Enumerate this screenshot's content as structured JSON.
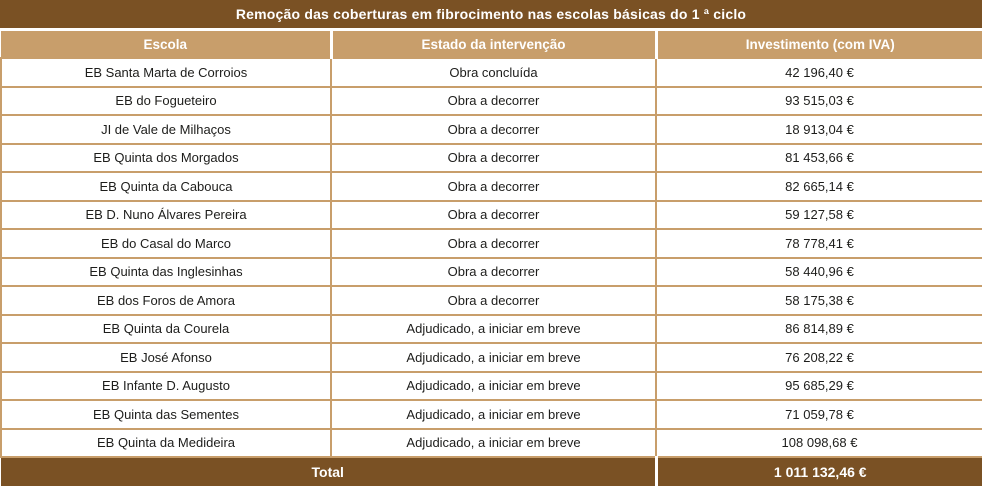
{
  "title": "Remoção das coberturas em fibrocimento nas escolas básicas do 1 ª ciclo",
  "table": {
    "columns": [
      "Escola",
      "Estado da intervenção",
      "Investimento (com IVA)"
    ],
    "rows": [
      {
        "school": "EB Santa Marta de Corroios",
        "status": "Obra concluída",
        "investment": "42 196,40 €"
      },
      {
        "school": "EB do Fogueteiro",
        "status": "Obra a decorrer",
        "investment": "93 515,03 €"
      },
      {
        "school": "JI de Vale de Milhaços",
        "status": "Obra a decorrer",
        "investment": "18 913,04 €"
      },
      {
        "school": "EB Quinta dos Morgados",
        "status": "Obra a decorrer",
        "investment": "81 453,66 €"
      },
      {
        "school": "EB Quinta da Cabouca",
        "status": "Obra a decorrer",
        "investment": "82 665,14 €"
      },
      {
        "school": "EB D. Nuno Álvares Pereira",
        "status": "Obra a decorrer",
        "investment": "59 127,58 €"
      },
      {
        "school": "EB do Casal do Marco",
        "status": "Obra a decorrer",
        "investment": "78 778,41 €"
      },
      {
        "school": "EB Quinta das Inglesinhas",
        "status": "Obra a decorrer",
        "investment": "58 440,96 €"
      },
      {
        "school": "EB dos Foros de Amora",
        "status": "Obra a decorrer",
        "investment": "58 175,38 €"
      },
      {
        "school": "EB Quinta da Courela",
        "status": "Adjudicado, a iniciar em breve",
        "investment": "86 814,89 €"
      },
      {
        "school": "EB José Afonso",
        "status": "Adjudicado, a iniciar em breve",
        "investment": "76 208,22 €"
      },
      {
        "school": "EB Infante D. Augusto",
        "status": "Adjudicado, a iniciar em breve",
        "investment": "95 685,29 €"
      },
      {
        "school": "EB Quinta das Sementes",
        "status": "Adjudicado, a iniciar em breve",
        "investment": "71 059,78 €"
      },
      {
        "school": "EB Quinta da Medideira",
        "status": "Adjudicado, a iniciar em breve",
        "investment": "108 098,68 €"
      }
    ],
    "total_label": "Total",
    "total_value": "1 011 132,46 €"
  },
  "colors": {
    "title_brown": "#7A5124",
    "header_tan": "#C89E6B",
    "row_text": "#1D1D1B"
  }
}
